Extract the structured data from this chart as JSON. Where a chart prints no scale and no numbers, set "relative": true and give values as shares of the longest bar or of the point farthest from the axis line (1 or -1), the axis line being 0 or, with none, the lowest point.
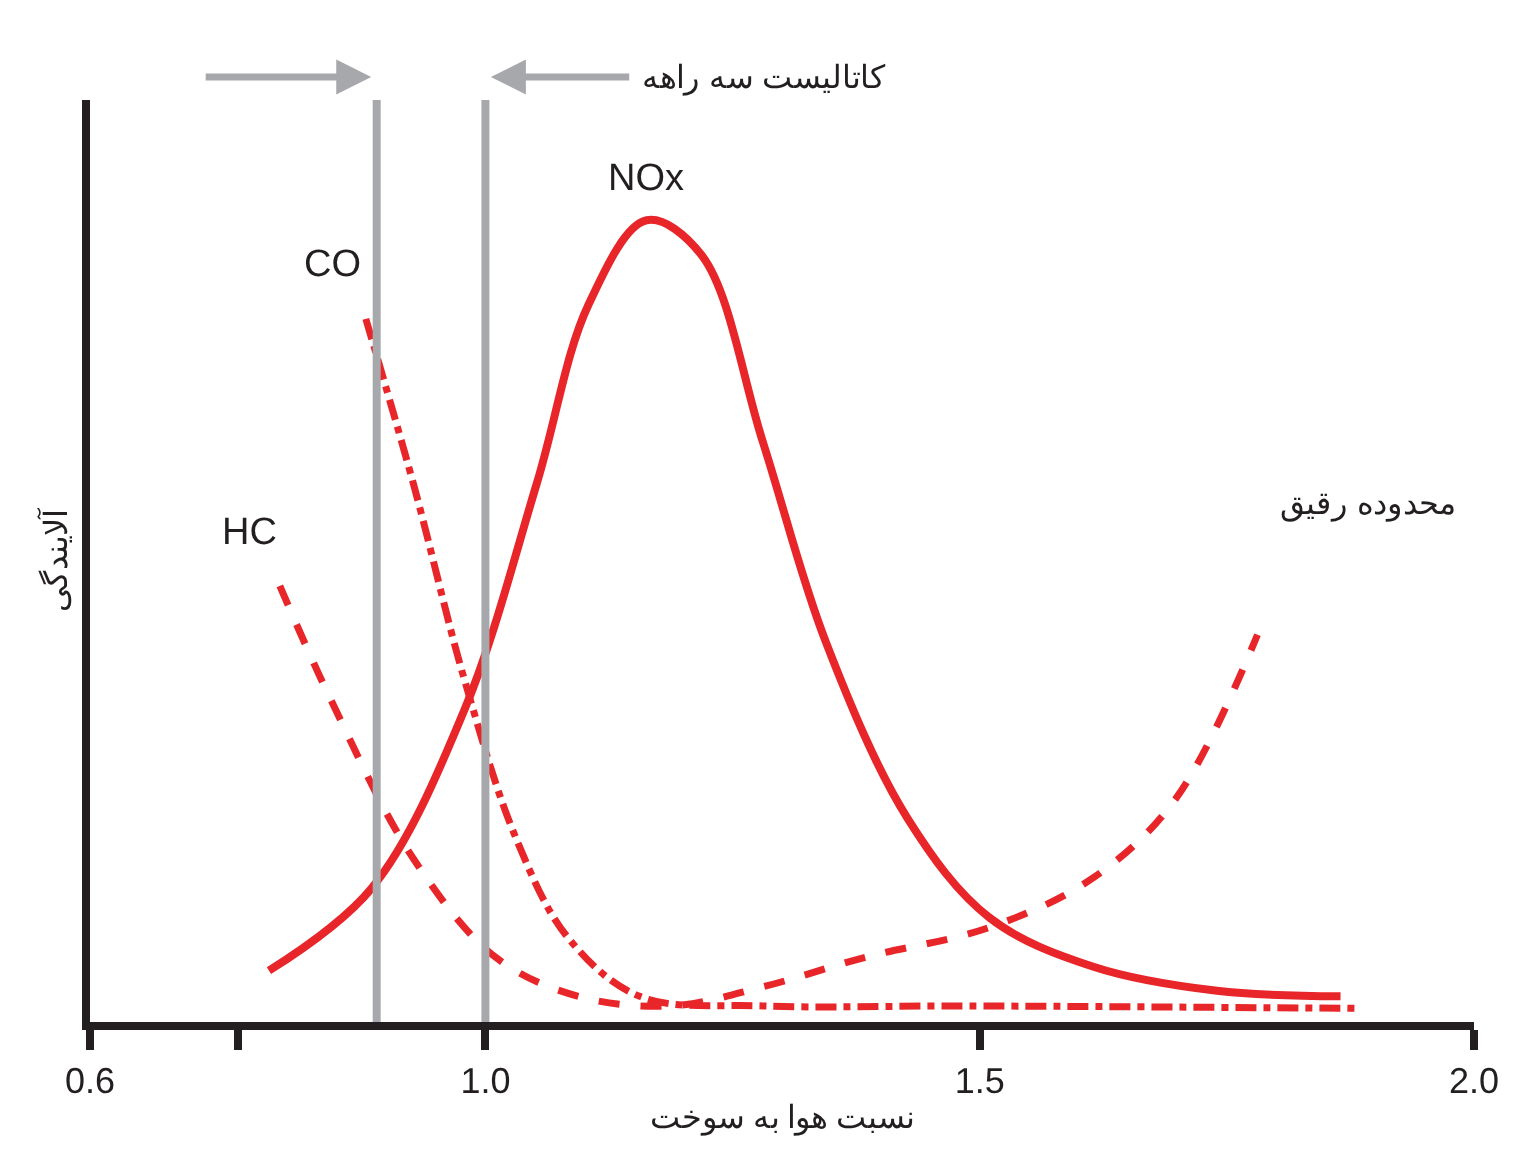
{
  "chart_data": {
    "type": "line",
    "relative": true,
    "xlabel": "نسبت هوا به سوخت",
    "ylabel": "آلایندگی",
    "xlim": [
      0.6,
      2.0
    ],
    "xticks": [
      0.6,
      {
        "value": 0.75,
        "label": null
      },
      {
        "value": 1.0,
        "label": "1.0"
      },
      1.5,
      {
        "value": 2.0,
        "label": "2.0"
      }
    ],
    "series": [
      {
        "name": "NOx",
        "color": "#e8262a",
        "line_style": "solid",
        "x": [
          0.781,
          0.885,
          0.979,
          1.052,
          1.104,
          1.163,
          1.219,
          1.281,
          1.344,
          1.427,
          1.51,
          1.615,
          1.74,
          1.865
        ],
        "values": [
          0.064,
          0.167,
          0.39,
          0.672,
          0.894,
          1.0,
          0.956,
          0.722,
          0.475,
          0.254,
          0.13,
          0.069,
          0.039,
          0.032
        ]
      },
      {
        "name": "CO",
        "color": "#e8262a",
        "line_style": "dashdot",
        "x": [
          0.879,
          0.927,
          0.979,
          1.031,
          1.083,
          1.156,
          1.281,
          1.49,
          1.885
        ],
        "values": [
          0.877,
          0.672,
          0.426,
          0.229,
          0.106,
          0.032,
          0.02,
          0.02,
          0.017
        ]
      },
      {
        "name": "HC",
        "color": "#e8262a",
        "line_style": "dashed",
        "x": [
          0.792,
          0.844,
          0.927,
          1.01,
          1.094,
          1.188,
          1.281,
          1.385,
          1.51,
          1.615,
          1.698,
          1.781
        ],
        "values": [
          0.544,
          0.401,
          0.204,
          0.081,
          0.032,
          0.02,
          0.044,
          0.081,
          0.118,
          0.18,
          0.278,
          0.483
        ]
      }
    ],
    "ref_lines": [
      {
        "axis": "x",
        "value": 0.89,
        "color": "#a6a8ab"
      },
      {
        "axis": "x",
        "value": 1.0,
        "color": "#a6a8ab"
      }
    ],
    "annotations": [
      "کاتالیست سه راهه",
      "محدوده رقیق"
    ],
    "legend": false
  }
}
